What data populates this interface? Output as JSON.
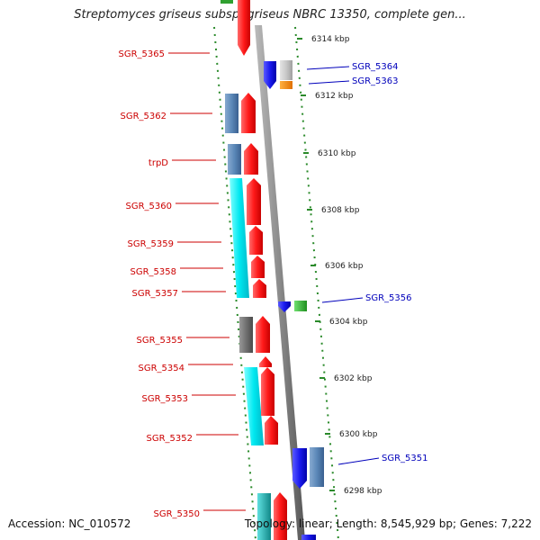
{
  "title": "Streptomyces griseus subsp. griseus NBRC 13350, complete gen...",
  "footer": {
    "accession": "Accession: NC_010572",
    "topology": "Topology: linear; Length: 8,545,929 bp; Genes: 7,222"
  },
  "colors": {
    "left_label": "#cc0000",
    "right_label": "#0000bb",
    "plus_strand": "#ff1a1a",
    "minus_strand": "#1a1aee",
    "cyan": "#00e8f0",
    "steelblue": "#5b88b8",
    "gray": "#707070",
    "lightgray": "#c8c8c8",
    "orange": "#ff8c00",
    "green": "#30c030",
    "teal": "#20b8b8"
  },
  "scale_ticks": [
    "6314 kbp",
    "6312 kbp",
    "6310 kbp",
    "6308 kbp",
    "6306 kbp",
    "6304 kbp",
    "6302 kbp",
    "6300 kbp",
    "6298 kbp"
  ],
  "left_genes": [
    "SGR_5365",
    "SGR_5362",
    "trpD",
    "SGR_5360",
    "SGR_5359",
    "SGR_5358",
    "SGR_5357",
    "SGR_5355",
    "SGR_5354",
    "SGR_5353",
    "SGR_5352",
    "SGR_5350"
  ],
  "right_genes": [
    "SGR_5364",
    "SGR_5363",
    "SGR_5356",
    "SGR_5351"
  ]
}
